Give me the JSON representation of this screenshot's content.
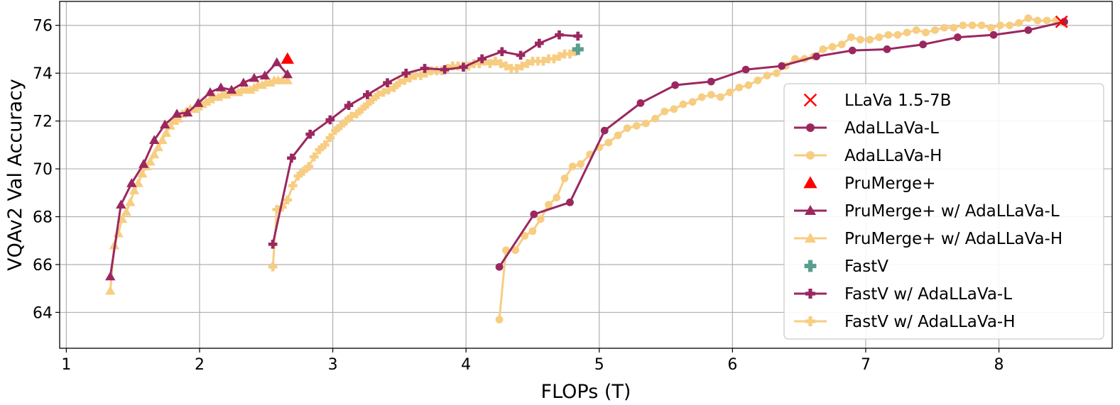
{
  "chart_data": {
    "type": "line",
    "xlabel": "FLOPs (T)",
    "ylabel": "VQAv2 Val Accuracy",
    "xlim": [
      0.95,
      8.85
    ],
    "ylim": [
      62.5,
      77
    ],
    "xticks": [
      "1",
      "2",
      "3",
      "4",
      "5",
      "6",
      "7",
      "8"
    ],
    "xtick_values": [
      1,
      2,
      3,
      4,
      5,
      6,
      7,
      8
    ],
    "yticks": [
      "64",
      "66",
      "68",
      "70",
      "72",
      "74",
      "76"
    ],
    "ytick_values": [
      64,
      66,
      68,
      70,
      72,
      74,
      76
    ],
    "grid": true,
    "legend_position": "right",
    "colors": {
      "purple": "#9b2760",
      "yellow": "#f7cd82",
      "red": "#ff0000",
      "teal": "#5a9e90"
    },
    "series": [
      {
        "name": "LLaVa 1.5-7B",
        "marker": "x",
        "line": false,
        "color": "#ff0000",
        "x": [
          8.47
        ],
        "y": [
          76.15
        ]
      },
      {
        "name": "AdaLLaVa-L",
        "marker": "circle",
        "line": true,
        "color": "#9b2760",
        "x": [
          4.25,
          4.51,
          4.78,
          5.04,
          5.31,
          5.57,
          5.84,
          6.1,
          6.37,
          6.63,
          6.9,
          7.16,
          7.43,
          7.69,
          7.96,
          8.22,
          8.49
        ],
        "y": [
          65.9,
          68.1,
          68.6,
          71.6,
          72.75,
          73.5,
          73.65,
          74.15,
          74.3,
          74.7,
          74.95,
          75.0,
          75.2,
          75.5,
          75.6,
          75.8,
          76.15
        ]
      },
      {
        "name": "AdaLLaVa-H",
        "marker": "circle",
        "line": true,
        "color": "#f7cd82",
        "x": [
          4.25,
          4.3,
          4.37,
          4.44,
          4.5,
          4.56,
          4.62,
          4.68,
          4.74,
          4.8,
          4.86,
          4.93,
          5.0,
          5.07,
          5.14,
          5.21,
          5.28,
          5.35,
          5.42,
          5.49,
          5.56,
          5.63,
          5.7,
          5.77,
          5.84,
          5.91,
          5.98,
          6.05,
          6.12,
          6.19,
          6.26,
          6.33,
          6.4,
          6.47,
          6.54,
          6.61,
          6.68,
          6.75,
          6.82,
          6.89,
          6.96,
          7.03,
          7.1,
          7.17,
          7.24,
          7.31,
          7.38,
          7.45,
          7.52,
          7.59,
          7.66,
          7.73,
          7.8,
          7.87,
          7.94,
          8.01,
          8.08,
          8.15,
          8.22,
          8.29,
          8.36,
          8.43,
          8.49
        ],
        "y": [
          63.7,
          66.6,
          66.6,
          67.2,
          67.4,
          67.9,
          68.5,
          68.8,
          69.6,
          70.1,
          70.2,
          70.6,
          70.9,
          71.1,
          71.4,
          71.7,
          71.8,
          71.9,
          72.1,
          72.4,
          72.5,
          72.7,
          72.8,
          73.0,
          73.1,
          73.0,
          73.2,
          73.4,
          73.5,
          73.7,
          73.9,
          74.0,
          74.3,
          74.6,
          74.6,
          74.7,
          75.0,
          75.1,
          75.2,
          75.5,
          75.4,
          75.4,
          75.5,
          75.6,
          75.6,
          75.7,
          75.8,
          75.7,
          75.8,
          75.9,
          75.9,
          76.0,
          76.0,
          76.0,
          75.9,
          76.0,
          76.0,
          76.1,
          76.3,
          76.2,
          76.2,
          76.2,
          76.1
        ]
      },
      {
        "name": "PruMerge+",
        "marker": "triangle",
        "line": false,
        "color": "#ff0000",
        "x": [
          2.66
        ],
        "y": [
          74.6
        ]
      },
      {
        "name": "PruMerge+ w/ AdaLLaVa-L",
        "marker": "triangle",
        "line": true,
        "color": "#9b2760",
        "x": [
          1.33,
          1.41,
          1.49,
          1.58,
          1.66,
          1.74,
          1.83,
          1.91,
          1.99,
          2.08,
          2.16,
          2.24,
          2.33,
          2.41,
          2.49,
          2.58,
          2.66
        ],
        "y": [
          65.5,
          68.5,
          69.4,
          70.2,
          71.2,
          71.85,
          72.3,
          72.35,
          72.75,
          73.2,
          73.4,
          73.3,
          73.6,
          73.8,
          73.9,
          74.45,
          73.95
        ]
      },
      {
        "name": "PruMerge+ w/ AdaLLaVa-H",
        "marker": "triangle",
        "line": true,
        "color": "#f7cd82",
        "x": [
          1.33,
          1.36,
          1.39,
          1.42,
          1.45,
          1.48,
          1.51,
          1.54,
          1.57,
          1.6,
          1.63,
          1.66,
          1.69,
          1.72,
          1.75,
          1.78,
          1.81,
          1.84,
          1.87,
          1.9,
          1.93,
          1.96,
          1.99,
          2.02,
          2.05,
          2.08,
          2.11,
          2.14,
          2.17,
          2.2,
          2.23,
          2.26,
          2.29,
          2.32,
          2.35,
          2.38,
          2.41,
          2.44,
          2.47,
          2.5,
          2.53,
          2.56,
          2.59,
          2.62,
          2.66
        ],
        "y": [
          64.9,
          66.8,
          67.3,
          67.9,
          68.2,
          68.6,
          69.1,
          69.4,
          69.8,
          70.1,
          70.3,
          70.6,
          70.9,
          71.2,
          71.5,
          71.8,
          72.0,
          72.1,
          72.3,
          72.4,
          72.5,
          72.5,
          72.6,
          72.7,
          72.8,
          72.9,
          73.0,
          73.0,
          73.1,
          73.1,
          73.2,
          73.2,
          73.2,
          73.3,
          73.3,
          73.3,
          73.4,
          73.5,
          73.5,
          73.6,
          73.6,
          73.7,
          73.7,
          73.7,
          73.7
        ]
      },
      {
        "name": "FastV",
        "marker": "plus",
        "line": false,
        "color": "#5a9e90",
        "x": [
          4.84
        ],
        "y": [
          75.0
        ]
      },
      {
        "name": "FastV w/ AdaLLaVa-L",
        "marker": "plus",
        "line": true,
        "color": "#9b2760",
        "x": [
          2.55,
          2.69,
          2.83,
          2.98,
          3.12,
          3.26,
          3.41,
          3.55,
          3.69,
          3.84,
          3.98,
          4.12,
          4.27,
          4.41,
          4.55,
          4.7,
          4.84
        ],
        "y": [
          66.85,
          70.45,
          71.45,
          72.05,
          72.65,
          73.1,
          73.6,
          74.0,
          74.2,
          74.15,
          74.25,
          74.6,
          74.9,
          74.75,
          75.25,
          75.6,
          75.55
        ]
      },
      {
        "name": "FastV w/ AdaLLaVa-H",
        "marker": "plus",
        "line": true,
        "color": "#f7cd82",
        "x": [
          2.55,
          2.58,
          2.62,
          2.66,
          2.7,
          2.74,
          2.78,
          2.82,
          2.86,
          2.9,
          2.94,
          2.98,
          3.02,
          3.06,
          3.1,
          3.14,
          3.18,
          3.22,
          3.26,
          3.3,
          3.34,
          3.38,
          3.42,
          3.46,
          3.5,
          3.54,
          3.58,
          3.62,
          3.66,
          3.7,
          3.74,
          3.78,
          3.82,
          3.86,
          3.9,
          3.94,
          3.98,
          4.02,
          4.06,
          4.1,
          4.14,
          4.18,
          4.22,
          4.26,
          4.3,
          4.34,
          4.38,
          4.42,
          4.46,
          4.5,
          4.54,
          4.58,
          4.62,
          4.66,
          4.7,
          4.74,
          4.78,
          4.82
        ],
        "y": [
          65.9,
          68.3,
          68.4,
          68.7,
          69.3,
          69.7,
          69.9,
          70.1,
          70.5,
          70.8,
          71.0,
          71.3,
          71.6,
          71.8,
          72.0,
          72.2,
          72.3,
          72.5,
          72.7,
          72.9,
          73.1,
          73.2,
          73.3,
          73.4,
          73.6,
          73.7,
          73.8,
          73.9,
          73.9,
          74.0,
          74.1,
          74.1,
          74.1,
          74.2,
          74.3,
          74.3,
          74.3,
          74.3,
          74.4,
          74.4,
          74.5,
          74.4,
          74.5,
          74.4,
          74.3,
          74.2,
          74.2,
          74.3,
          74.4,
          74.5,
          74.5,
          74.5,
          74.6,
          74.6,
          74.7,
          74.8,
          74.8,
          74.9
        ]
      }
    ]
  }
}
